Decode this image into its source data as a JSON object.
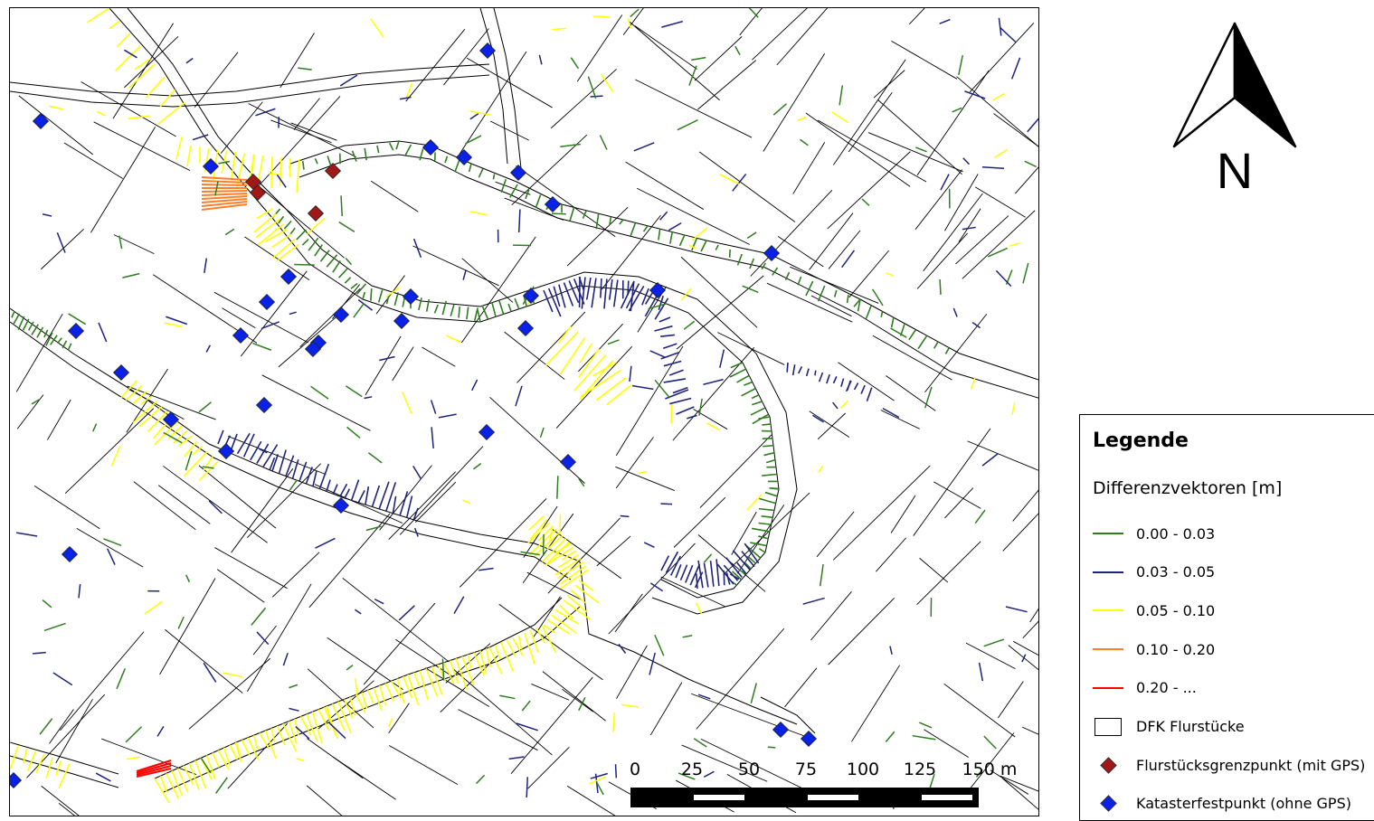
{
  "colors": {
    "class_1": "#2e7d1f",
    "class_2": "#1f237a",
    "class_3": "#ffff00",
    "class_4": "#ff7f27",
    "class_5": "#ff0000",
    "parcel_outline": "#000000",
    "gps_point": "#a01818",
    "control_point": "#0a22e6"
  },
  "north_arrow": {
    "label": "N",
    "icon": "north-arrow-icon"
  },
  "scale_bar": {
    "labels": [
      "0",
      "25",
      "50",
      "75",
      "100",
      "125",
      "150 m"
    ]
  },
  "legend": {
    "title": "Legende",
    "subtitle": "Differenzvektoren [m]",
    "items": [
      {
        "label": "0.00 - 0.03",
        "type": "line",
        "color": "#2e7d1f"
      },
      {
        "label": "0.03 - 0.05",
        "type": "line",
        "color": "#1f237a"
      },
      {
        "label": "0.05 - 0.10",
        "type": "line",
        "color": "#ffff00"
      },
      {
        "label": "0.10 - 0.20",
        "type": "line",
        "color": "#ff7f27"
      },
      {
        "label": "0.20 - ...",
        "type": "line",
        "color": "#ff0000"
      },
      {
        "label": "DFK Flurstücke",
        "type": "box",
        "color": "#000000"
      },
      {
        "label": "Flurstücksgrenzpunkt (mit GPS)",
        "type": "diamond",
        "color": "#a01818"
      },
      {
        "label": "Katasterfestpunkt (ohne GPS)",
        "type": "diamond",
        "color": "#0a22e6"
      }
    ]
  }
}
